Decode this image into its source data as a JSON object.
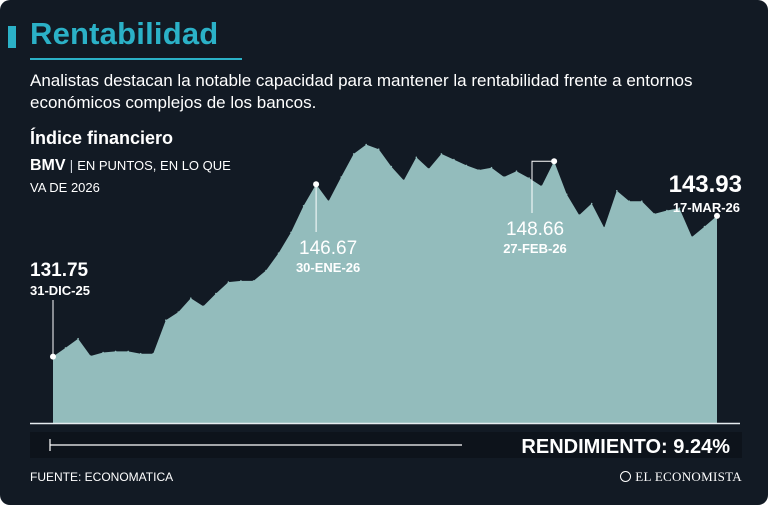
{
  "header": {
    "title": "Rentabilidad",
    "subtitle": "Analistas destacan la notable capacidad para mantener la rentabilidad frente a entornos económicos complejos de los bancos."
  },
  "chart_info": {
    "title": "Índice financiero",
    "index": "BMV",
    "units": "EN PUNTOS, EN LO QUE VA DE 2026"
  },
  "footer": {
    "source": "FUENTE: ECONOMATICA",
    "brand": "EL ECONOMISTA"
  },
  "colors": {
    "background": "#121a24",
    "accent": "#2bb1c7",
    "area": "#93bcbc",
    "text": "#ffffff"
  },
  "chart_data": {
    "type": "area",
    "title": "Índice financiero",
    "xlabel": "",
    "ylabel": "",
    "ylim": [
      126,
      150.5
    ],
    "grid": false,
    "series": [
      {
        "values": [
          131.75,
          132.5,
          133.3,
          131.8,
          132.1,
          132.2,
          132.2,
          132.0,
          132.0,
          134.9,
          135.6,
          136.8,
          136.1,
          137.2,
          138.2,
          138.3,
          138.3,
          139.2,
          140.7,
          142.5,
          144.8,
          146.67,
          145.2,
          147.3,
          149.3,
          150.1,
          149.7,
          148.2,
          147.0,
          149.0,
          148.0,
          149.3,
          148.8,
          148.3,
          147.9,
          148.1,
          147.3,
          147.8,
          147.2,
          146.5,
          148.66,
          145.8,
          144.0,
          145.0,
          142.9,
          146.1,
          145.2,
          145.2,
          144.1,
          144.4,
          144.6,
          142.1,
          143.0,
          143.93
        ]
      }
    ],
    "annotations": [
      {
        "value": "131.75",
        "date": "31-DIC-25"
      },
      {
        "value": "146.67",
        "date": "30-ENE-26"
      },
      {
        "value": "148.66",
        "date": "27-FEB-26"
      },
      {
        "value": "143.93",
        "date": "17-MAR-26"
      }
    ],
    "summary": "RENDIMIENTO: 9.24%"
  }
}
